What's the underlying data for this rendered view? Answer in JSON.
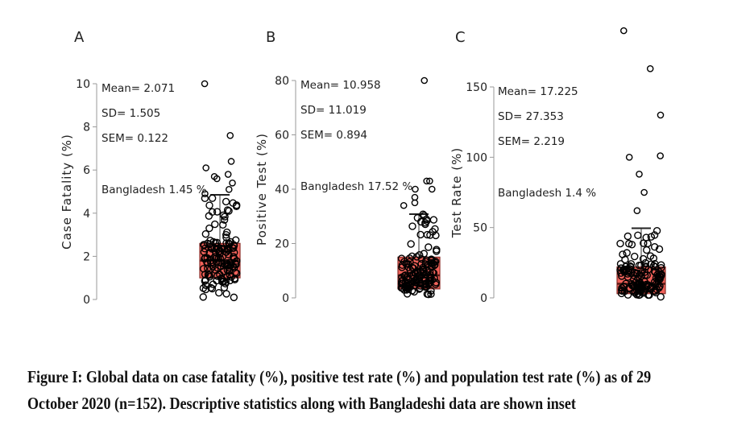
{
  "chart_data": [
    {
      "type": "box",
      "panel_label": "A",
      "ylabel": "Case Fatality (%)",
      "ylim": [
        0,
        10
      ],
      "yticks": [
        0,
        2,
        4,
        6,
        8,
        10
      ],
      "stats": [
        "Mean= 2.071",
        "SD= 1.505",
        "SEM= 0.122"
      ],
      "annotation": "Bangladesh 1.45 %",
      "box": {
        "q1": 1.0,
        "median": 1.8,
        "q3": 2.6,
        "whisker_low": 0,
        "whisker_high": 4.85
      },
      "outliers": [
        10,
        7.6,
        6.4,
        6.1,
        5.8,
        5.7,
        5.6,
        5.4,
        5.1,
        4.9
      ],
      "n": 152,
      "box_color": "#f0625a"
    },
    {
      "type": "box",
      "panel_label": "B",
      "ylabel": "Positive Test (%)",
      "ylim": [
        0,
        80
      ],
      "yticks": [
        0,
        20,
        40,
        60,
        80
      ],
      "stats": [
        "Mean= 10.958",
        "SD= 11.019",
        "SEM= 0.894"
      ],
      "annotation": "Bangladesh 17.52 %",
      "box": {
        "q1": 3.3,
        "median": 8.3,
        "q3": 15,
        "whisker_low": 0,
        "whisker_high": 30.8
      },
      "outliers": [
        80,
        43,
        43,
        40,
        40,
        37,
        35,
        34
      ],
      "n": 152,
      "box_color": "#f0625a"
    },
    {
      "type": "box",
      "panel_label": "C",
      "ylabel": "Test Rate (%)",
      "ylim": [
        0,
        150
      ],
      "yticks": [
        0,
        50,
        100,
        150
      ],
      "stats": [
        "Mean= 17.225",
        "SD= 27.353",
        "SEM= 2.219"
      ],
      "annotation": "Bangladesh 1.4 %",
      "box": {
        "q1": 3,
        "median": 10,
        "q3": 22,
        "whisker_low": 0,
        "whisker_high": 49.5
      },
      "outliers": [
        190,
        163,
        130,
        101,
        100,
        88,
        75,
        62
      ],
      "n": 152,
      "box_color": "#f0625a"
    }
  ],
  "caption_lines": [
    "Figure I: Global data on case fatality (%), positive test rate (%) and population test rate (%) as of 29",
    "October 2020 (n=152). Descriptive statistics along with Bangladeshi data are shown inset"
  ]
}
